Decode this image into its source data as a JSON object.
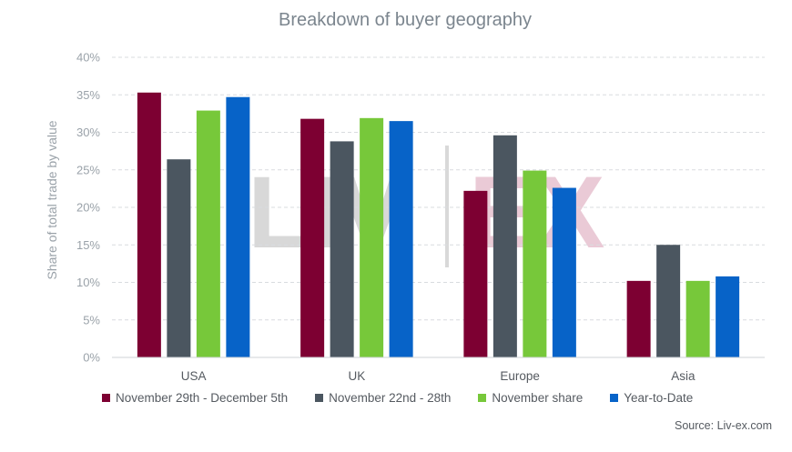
{
  "chart_data": {
    "type": "bar",
    "title": "Breakdown of buyer geography",
    "ylabel": "Share of total trade by value",
    "xlabel": "",
    "categories": [
      "USA",
      "UK",
      "Europe",
      "Asia"
    ],
    "ylim": [
      0,
      40
    ],
    "yticks": [
      "0%",
      "5%",
      "10%",
      "15%",
      "20%",
      "25%",
      "30%",
      "35%",
      "40%"
    ],
    "grid": true,
    "legend_position": "bottom",
    "series": [
      {
        "name": "November 29th - December 5th",
        "color": "#7d0032",
        "values": [
          35.3,
          31.8,
          22.2,
          10.2
        ]
      },
      {
        "name": "November 22nd - 28th",
        "color": "#4b5660",
        "values": [
          26.4,
          28.8,
          29.6,
          15.0
        ]
      },
      {
        "name": "November share",
        "color": "#77c83a",
        "values": [
          32.9,
          31.9,
          24.9,
          10.2
        ]
      },
      {
        "name": "Year-to-Date",
        "color": "#0763c8",
        "values": [
          34.7,
          31.5,
          22.6,
          10.8
        ]
      }
    ],
    "watermark": "LIV-EX",
    "source": "Source: Liv-ex.com"
  }
}
